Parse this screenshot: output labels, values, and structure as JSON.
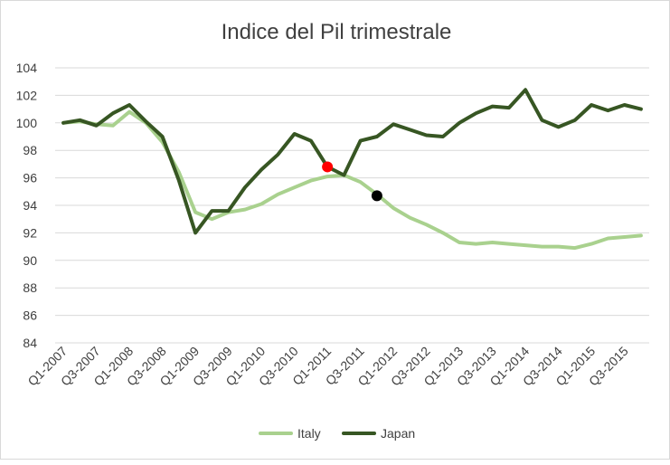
{
  "chart_data": {
    "type": "line",
    "title": "Indice del Pil trimestrale",
    "xlabel": "",
    "ylabel": "",
    "ylim": [
      84,
      104
    ],
    "yticks": [
      84,
      86,
      88,
      90,
      92,
      94,
      96,
      98,
      100,
      102,
      104
    ],
    "grid": true,
    "legend": "bottom",
    "x": [
      "Q1-2007",
      "Q2-2007",
      "Q3-2007",
      "Q4-2007",
      "Q1-2008",
      "Q2-2008",
      "Q3-2008",
      "Q4-2008",
      "Q1-2009",
      "Q2-2009",
      "Q3-2009",
      "Q4-2009",
      "Q1-2010",
      "Q2-2010",
      "Q3-2010",
      "Q4-2010",
      "Q1-2011",
      "Q2-2011",
      "Q3-2011",
      "Q4-2011",
      "Q1-2012",
      "Q2-2012",
      "Q3-2012",
      "Q4-2012",
      "Q1-2013",
      "Q2-2013",
      "Q3-2013",
      "Q4-2013",
      "Q1-2014",
      "Q2-2014",
      "Q3-2014",
      "Q4-2014",
      "Q1-2015",
      "Q2-2015",
      "Q3-2015",
      "Q4-2015"
    ],
    "x_tick_labels": [
      "Q1-2007",
      "Q3-2007",
      "Q1-2008",
      "Q3-2008",
      "Q1-2009",
      "Q3-2009",
      "Q1-2010",
      "Q3-2010",
      "Q1-2011",
      "Q3-2011",
      "Q1-2012",
      "Q3-2012",
      "Q1-2013",
      "Q3-2013",
      "Q1-2014",
      "Q3-2014",
      "Q1-2015",
      "Q3-2015"
    ],
    "series": [
      {
        "name": "Italy",
        "color": "#a9d18e",
        "values": [
          100.0,
          100.1,
          99.9,
          99.8,
          100.8,
          100.0,
          98.6,
          96.4,
          93.5,
          93.0,
          93.5,
          93.7,
          94.1,
          94.8,
          95.3,
          95.8,
          96.1,
          96.2,
          95.7,
          94.8,
          93.8,
          93.1,
          92.6,
          92.0,
          91.3,
          91.2,
          91.3,
          91.2,
          91.1,
          91.0,
          91.0,
          90.9,
          91.2,
          91.6,
          91.7,
          91.8
        ]
      },
      {
        "name": "Japan",
        "color": "#375623",
        "values": [
          100.0,
          100.2,
          99.8,
          100.7,
          101.3,
          100.1,
          99.0,
          95.8,
          92.0,
          93.6,
          93.6,
          95.3,
          96.6,
          97.7,
          99.2,
          98.7,
          96.8,
          96.2,
          98.7,
          99.0,
          99.9,
          99.5,
          99.1,
          99.0,
          100.0,
          100.7,
          101.2,
          101.1,
          102.4,
          100.2,
          99.7,
          100.2,
          101.3,
          100.9,
          101.3,
          101.0
        ]
      }
    ],
    "markers": [
      {
        "x": "Q1-2011",
        "y": 96.8,
        "color": "#ff0000"
      },
      {
        "x": "Q4-2011",
        "y": 94.7,
        "color": "#000000"
      }
    ]
  }
}
